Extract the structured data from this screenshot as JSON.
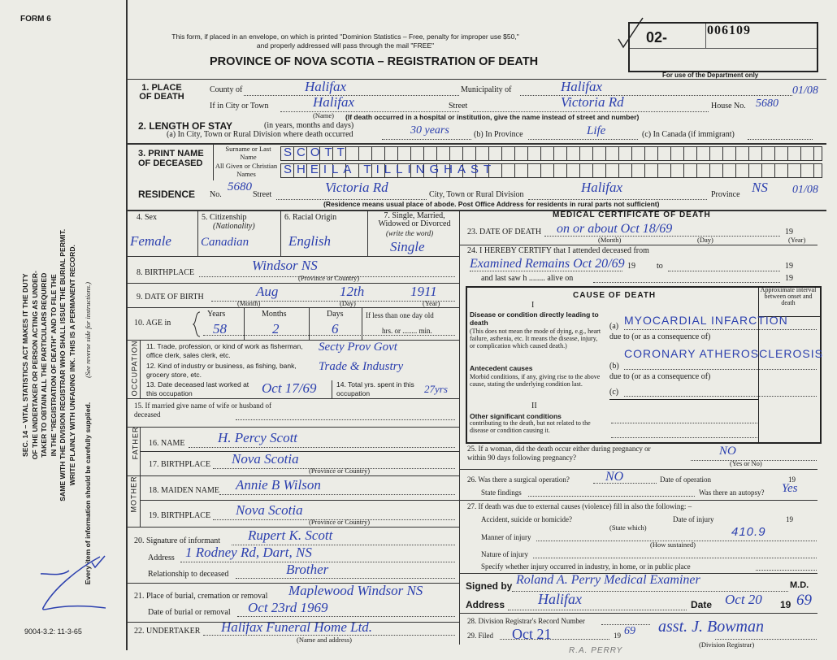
{
  "form_number": "FORM 6",
  "form_code": "9004-3.2: 11-3-65",
  "notice": "This form, if placed in an envelope, on which is printed \"Dominion Statistics – Free, penalty for improper use $50,\" and properly addressed will pass through the mail \"FREE\"",
  "title": "PROVINCE OF NOVA SCOTIA – REGISTRATION OF DEATH",
  "registration_prefix": "02-",
  "registration_number": "006109",
  "department_use": "For use of the Department only",
  "side_text": [
    "SEC. 14 – VITAL STATISTICS ACT MAKES IT THE DUTY",
    "OF THE UNDERTAKER OR PERSON ACTING AS UNDER-",
    "TAKER TO OBTAIN ALL THE PARTICULARS REQUIRED",
    "IN THE \"REGISTRATION OF DEATH\" AND TO FILE THE",
    "SAME WITH THE DIVISION REGISTRAR WHO SHALL ISSUE THE BURIAL PERMIT.",
    "WRITE PLAINLY WITH UNFADING INK. THIS IS A PERMANENT RECORD."
  ],
  "side_footer": "Every item of information should be carefully supplied.",
  "side_instructions": "(See reverse side for instructions.)",
  "labels": {
    "place_of_death": "1. PLACE OF DEATH",
    "county": "County of",
    "municipality": "Municipality of",
    "city": "If in City or Town",
    "name_note": "(Name)",
    "street": "Street",
    "house": "House No.",
    "hospital_note": "(If death occurred in a hospital or institution, give the name instead of street and number)",
    "length_of_stay": "2. LENGTH OF STAY",
    "length_note": "(in years, months and days)",
    "stay_a": "(a) In City, Town or Rural Division where death occurred",
    "stay_b": "(b) In Province",
    "stay_c": "(c) In Canada (if immigrant)",
    "print_name": "3. PRINT NAME OF DECEASED",
    "surname": "Surname or Last Name",
    "given": "All Given or Christian Names",
    "residence": "RESIDENCE",
    "res_no": "No.",
    "res_street": "Street",
    "res_city": "City, Town or Rural Division",
    "res_province": "Province",
    "residence_note": "(Residence means usual place of abode. Post Office Address for residents in rural parts not sufficient)",
    "sex": "4. Sex",
    "citizenship": "5. Citizenship",
    "nationality": "(Nationality)",
    "racial": "6. Racial Origin",
    "marital": "7. Single, Married, Widowed or Divorced",
    "write_word": "(write the word)",
    "birthplace": "8. BIRTHPLACE",
    "province_or_country": "(Province or Country)",
    "dob": "9. DATE OF BIRTH",
    "month": "(Month)",
    "day": "(Day)",
    "year": "(Year)",
    "age": "10. AGE in",
    "years": "Years",
    "months": "Months",
    "days": "Days",
    "less_than_day": "If less than one day old",
    "hrs_min": "hrs. or ........ min.",
    "occupation": "OCCUPATION",
    "trade": "11. Trade, profession, or kind of work as fisherman, office clerk, sales clerk, etc.",
    "industry": "12. Kind of industry or business, as fishing, bank, grocery store, etc.",
    "last_worked": "13. Date deceased last worked at this occupation",
    "total_yrs": "14. Total yrs. spent in this occupation",
    "spouse": "15. If married give name of wife or husband of deceased",
    "father": "FATHER",
    "mother": "MOTHER",
    "father_name": "16. NAME",
    "father_birthplace": "17. BIRTHPLACE",
    "maiden_name": "18. MAIDEN NAME",
    "mother_birthplace": "19. BIRTHPLACE",
    "informant": "20. Signature of informant",
    "address": "Address",
    "relationship": "Relationship to deceased",
    "burial_place": "21. Place of burial, cremation or removal",
    "burial_date": "Date of burial or removal",
    "undertaker": "22. UNDERTAKER",
    "name_and_address": "(Name and address)",
    "medical_cert": "MEDICAL CERTIFICATE OF DEATH",
    "date_of_death": "23. DATE OF DEATH",
    "nineteen": "19",
    "certify": "24. I HEREBY CERTIFY that I attended deceased from",
    "to": "to",
    "last_saw": "and last saw h ........ alive on",
    "cause_of_death": "CAUSE OF DEATH",
    "interval": "Approximate interval between onset and death",
    "part1": "I",
    "part2": "II",
    "direct_title": "Disease or condition directly leading to death",
    "direct_desc": "(This does not mean the mode of dying, e.g., heart failure, asthenia, etc. It means the disease, injury, or complication which caused death.)",
    "antecedent_title": "Antecedent causes",
    "antecedent_desc": "Morbid conditions, if any, giving rise to the above cause, stating the underlying condition last.",
    "other_title": "Other significant conditions",
    "other_desc": "contributing to the death, but not related to the disease or condition causing it.",
    "a": "(a)",
    "b": "(b)",
    "c": "(c)",
    "due_to": "due to (or as a consequence of)",
    "pregnancy": "25. If a woman, did the death occur either during pregnancy or within 90 days following pregnancy?",
    "yes_no": "(Yes or No)",
    "surgery": "26. Was there a surgical operation?",
    "date_of_operation": "Date of operation",
    "state_findings": "State findings",
    "autopsy": "Was there an autopsy?",
    "external": "27. If death was due to external causes (violence) fill in also the following: –",
    "accident": "Accident, suicide or homicide?",
    "state_which": "(State which)",
    "date_of_injury": "Date of injury",
    "manner": "Manner of injury",
    "how_sustained": "(How sustained)",
    "nature": "Nature of injury",
    "specify": "Specify whether injury occurred in industry, in home, or in public place",
    "signed_by": "Signed by",
    "md": "M.D.",
    "date": "Date",
    "record_number": "28. Division Registrar's Record Number",
    "filed": "29. Filed",
    "division_registrar": "(Division Registrar)"
  },
  "entries": {
    "county": "Halifax",
    "municipality": "Halifax",
    "city": "Halifax",
    "street": "Victoria Rd",
    "house": "5680",
    "code1": "01/08",
    "stay_a": "30 years",
    "stay_b": "Life",
    "surname": "SCOTT",
    "given": "SHEILA TILLINGHAST",
    "res_no": "5680",
    "res_street": "Victoria Rd",
    "res_city": "Halifax",
    "res_province": "NS",
    "code2": "01/08",
    "sex": "Female",
    "citizenship": "Canadian",
    "racial": "English",
    "marital": "Single",
    "birthplace": "Windsor NS",
    "dob_month": "Aug",
    "dob_day": "12th",
    "dob_year": "1911",
    "age_years": "58",
    "age_months": "2",
    "age_days": "6",
    "trade": "Secty Prov Govt",
    "industry": "Trade & Industry",
    "last_worked": "Oct 17/69",
    "total_yrs": "27yrs",
    "father_name": "H. Percy Scott",
    "father_birthplace": "Nova Scotia",
    "maiden_name": "Annie B Wilson",
    "mother_birthplace": "Nova Scotia",
    "informant": "Rupert K. Scott",
    "informant_address": "1 Rodney Rd, Dart, NS",
    "relationship": "Brother",
    "burial_place": "Maplewood Windsor NS",
    "burial_date": "Oct 23rd 1969",
    "undertaker": "Halifax Funeral Home Ltd.",
    "date_of_death": "on or about Oct 18/69",
    "certify": "Examined Remains Oct 20/69",
    "cause_a": "MYOCARDIAL INFARCTION",
    "cause_b": "CORONARY ATHEROSCLEROSIS",
    "pregnancy": "NO",
    "surgery": "NO",
    "autopsy": "Yes",
    "manner_code": "410.9",
    "signed_by": "Roland A. Perry Medical Examiner",
    "address": "Halifax",
    "date": "Oct 20",
    "date_year": "69",
    "filed": "Oct 21",
    "filed_year": "69",
    "registrar": "asst. J. Bowman",
    "stamp": "R.A. PERRY"
  },
  "colors": {
    "paper": "#ecece6",
    "ink": "#2b3fae",
    "print": "#1a1a1a"
  }
}
